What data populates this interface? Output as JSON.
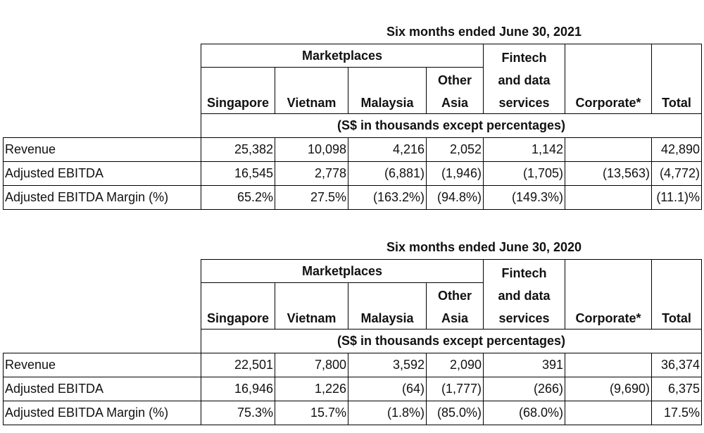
{
  "table_2021": {
    "title": "Six months ended June 30, 2021",
    "group_marketplaces": "Marketplaces",
    "col_fintech_1": "Fintech",
    "col_fintech_2": "and data",
    "col_fintech_3": "services",
    "col_other_1": "Other",
    "col_other_2": "Asia",
    "col_singapore": "Singapore",
    "col_vietnam": "Vietnam",
    "col_malaysia": "Malaysia",
    "col_corporate": "Corporate*",
    "col_total": "Total",
    "units": "(S$ in thousands except percentages)",
    "rows": [
      {
        "label": "Revenue",
        "values": [
          "25,382",
          "10,098",
          "4,216",
          "2,052",
          "1,142",
          "",
          "42,890"
        ]
      },
      {
        "label": "Adjusted EBITDA",
        "values": [
          "16,545",
          "2,778",
          "(6,881)",
          "(1,946)",
          "(1,705)",
          "(13,563)",
          "(4,772)"
        ]
      },
      {
        "label": "Adjusted EBITDA Margin (%)",
        "values": [
          "65.2%",
          "27.5%",
          "(163.2%)",
          "(94.8%)",
          "(149.3%)",
          "",
          "(11.1)%"
        ]
      }
    ]
  },
  "table_2020": {
    "title": "Six months ended June 30, 2020",
    "group_marketplaces": "Marketplaces",
    "col_fintech_1": "Fintech",
    "col_fintech_2": "and data",
    "col_fintech_3": "services",
    "col_other_1": "Other",
    "col_other_2": "Asia",
    "col_singapore": "Singapore",
    "col_vietnam": "Vietnam",
    "col_malaysia": "Malaysia",
    "col_corporate": "Corporate*",
    "col_total": "Total",
    "units": "(S$ in thousands except percentages)",
    "rows": [
      {
        "label": "Revenue",
        "values": [
          "22,501",
          "7,800",
          "3,592",
          "2,090",
          "391",
          "",
          "36,374"
        ]
      },
      {
        "label": "Adjusted EBITDA",
        "values": [
          "16,946",
          "1,226",
          "(64)",
          "(1,777)",
          "(266)",
          "(9,690)",
          "6,375"
        ]
      },
      {
        "label": "Adjusted EBITDA Margin (%)",
        "values": [
          "75.3%",
          "15.7%",
          "(1.8%)",
          "(85.0%)",
          "(68.0%)",
          "",
          "17.5%"
        ]
      }
    ]
  }
}
